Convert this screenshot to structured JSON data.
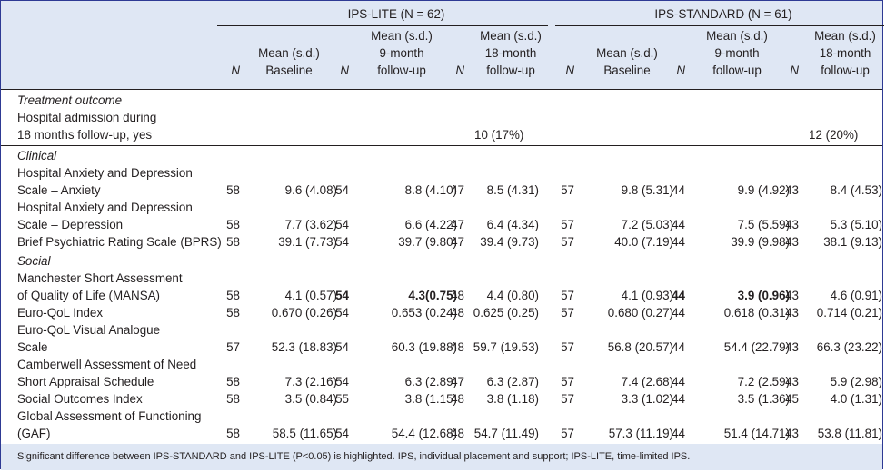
{
  "groups": [
    {
      "label": "IPS-LITE (N = 62)"
    },
    {
      "label": "IPS-STANDARD (N = 61)"
    }
  ],
  "columns": {
    "n": "N",
    "baseline": [
      "Mean (s.d.)",
      "Baseline"
    ],
    "m9": [
      "Mean (s.d.)",
      "9-month",
      "follow-up"
    ],
    "m18": [
      "Mean (s.d.)",
      "18-month",
      "follow-up"
    ]
  },
  "sections": [
    {
      "title": "Treatment outcome",
      "rows": [
        {
          "label": [
            "Hospital admission during",
            "18 months follow-up, yes"
          ],
          "cells": [
            "",
            "",
            "",
            "",
            "",
            "10 (17%)",
            "",
            "",
            "",
            "",
            "",
            "12 (20%)"
          ]
        }
      ]
    },
    {
      "title": "Clinical",
      "rows": [
        {
          "label": [
            "Hospital Anxiety and Depression",
            "Scale – Anxiety"
          ],
          "cells": [
            "58",
            "9.6 (4.08)",
            "54",
            "8.8 (4.10)",
            "47",
            "8.5 (4.31)",
            "57",
            "9.8 (5.31)",
            "44",
            "9.9 (4.92)",
            "43",
            "8.4 (4.53)"
          ]
        },
        {
          "label": [
            "Hospital Anxiety and Depression",
            "Scale – Depression"
          ],
          "cells": [
            "58",
            "7.7 (3.62)",
            "54",
            "6.6 (4.22)",
            "47",
            "6.4 (4.34)",
            "57",
            "7.2 (5.03)",
            "44",
            "7.5 (5.59)",
            "43",
            "5.3 (5.10)"
          ]
        },
        {
          "label": [
            "Brief Psychiatric Rating Scale (BPRS)"
          ],
          "cells": [
            "58",
            "39.1 (7.73)",
            "54",
            "39.7 (9.80)",
            "47",
            "39.4 (9.73)",
            "57",
            "40.0 (7.19)",
            "44",
            "39.9 (9.98)",
            "43",
            "38.1 (9.13)"
          ]
        }
      ]
    },
    {
      "title": "Social",
      "rows": [
        {
          "label": [
            "Manchester Short Assessment",
            "of Quality of Life (MANSA)"
          ],
          "cells": [
            "58",
            "4.1 (0.57)",
            "54",
            "4.3(0.75)",
            "48",
            "4.4 (0.80)",
            "57",
            "4.1 (0.93)",
            "44",
            "3.9 (0.96)",
            "43",
            "4.6 (0.91)"
          ],
          "bold": [
            2,
            3,
            8,
            9
          ]
        },
        {
          "label": [
            "Euro-QoL Index"
          ],
          "cells": [
            "58",
            "0.670 (0.26)",
            "54",
            "0.653 (0.24)",
            "48",
            "0.625 (0.25)",
            "57",
            "0.680 (0.27)",
            "44",
            "0.618 (0.31)",
            "43",
            "0.714 (0.21)"
          ]
        },
        {
          "label": [
            "Euro-QoL Visual Analogue",
            "Scale"
          ],
          "cells": [
            "57",
            "52.3 (18.83)",
            "54",
            "60.3 (19.88)",
            "48",
            "59.7 (19.53)",
            "57",
            "56.8 (20.57)",
            "44",
            "54.4 (22.79)",
            "43",
            "66.3 (23.22)"
          ]
        },
        {
          "label": [
            "Camberwell Assessment of Need",
            "Short Appraisal Schedule"
          ],
          "cells": [
            "58",
            "7.3 (2.16)",
            "54",
            "6.3 (2.89)",
            "47",
            "6.3 (2.87)",
            "57",
            "7.4 (2.68)",
            "44",
            "7.2 (2.59)",
            "43",
            "5.9 (2.98)"
          ]
        },
        {
          "label": [
            "Social Outcomes Index"
          ],
          "cells": [
            "58",
            "3.5 (0.84)",
            "55",
            "3.8 (1.15)",
            "48",
            "3.8 (1.18)",
            "57",
            "3.3 (1.02)",
            "44",
            "3.5 (1.36)",
            "45",
            "4.0 (1.31)"
          ]
        },
        {
          "label": [
            "Global Assessment of Functioning",
            "(GAF)"
          ],
          "cells": [
            "58",
            "58.5 (11.65)",
            "54",
            "54.4 (12.68)",
            "48",
            "54.7 (11.49)",
            "57",
            "57.3 (11.19)",
            "44",
            "51.4 (14.71)",
            "43",
            "53.8 (11.81)"
          ]
        }
      ]
    }
  ],
  "footnote": "Significant difference between IPS-STANDARD and IPS-LITE (P<0.05) is highlighted. IPS, individual placement and support; IPS-LITE, time-limited IPS."
}
